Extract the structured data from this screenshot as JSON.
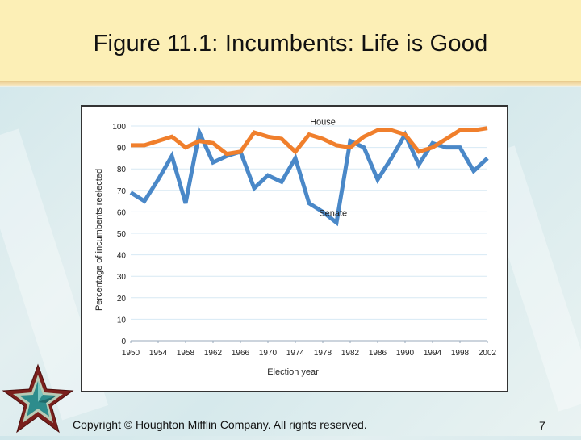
{
  "slide": {
    "title": "Figure 11.1: Incumbents:  Life is Good",
    "footer": "Copyright © Houghton Mifflin Company. All rights reserved.",
    "page_number": "7"
  },
  "colors": {
    "house": "#f07f2c",
    "senate": "#4a88c8",
    "gridline": "#d7e9f4"
  },
  "chart_data": {
    "type": "line",
    "title": "",
    "xlabel": "Election year",
    "ylabel": "Percentage of incumbents reelected",
    "xlim": [
      1950,
      2002
    ],
    "ylim": [
      0,
      100
    ],
    "x_ticks": [
      "1950",
      "1954",
      "1958",
      "1962",
      "1966",
      "1970",
      "1974",
      "1978",
      "1982",
      "1986",
      "1990",
      "1994",
      "1998",
      "2002"
    ],
    "y_ticks": [
      "0",
      "10",
      "20",
      "30",
      "40",
      "50",
      "60",
      "70",
      "80",
      "90",
      "100"
    ],
    "series": [
      {
        "name": "House",
        "x": [
          1950,
          1952,
          1954,
          1956,
          1958,
          1960,
          1962,
          1964,
          1966,
          1968,
          1970,
          1972,
          1974,
          1976,
          1978,
          1980,
          1982,
          1984,
          1986,
          1988,
          1990,
          1992,
          1994,
          1996,
          1998,
          2000,
          2002
        ],
        "values": [
          91,
          91,
          93,
          95,
          90,
          93,
          92,
          87,
          88,
          97,
          95,
          94,
          88,
          96,
          94,
          91,
          90,
          95,
          98,
          98,
          96,
          88,
          90,
          94,
          98,
          98,
          99
        ]
      },
      {
        "name": "Senate",
        "x": [
          1950,
          1952,
          1954,
          1956,
          1958,
          1960,
          1962,
          1964,
          1966,
          1968,
          1970,
          1972,
          1974,
          1976,
          1978,
          1980,
          1982,
          1984,
          1986,
          1988,
          1990,
          1992,
          1994,
          1996,
          1998,
          2000,
          2002
        ],
        "values": [
          69,
          65,
          75,
          86,
          64,
          97,
          83,
          86,
          88,
          71,
          77,
          74,
          85,
          64,
          60,
          55,
          93,
          90,
          75,
          85,
          96,
          82,
          92,
          90,
          90,
          79,
          85
        ]
      }
    ],
    "annotations": [
      {
        "text": "House",
        "series": "House"
      },
      {
        "text": "Senate",
        "series": "Senate"
      }
    ]
  }
}
